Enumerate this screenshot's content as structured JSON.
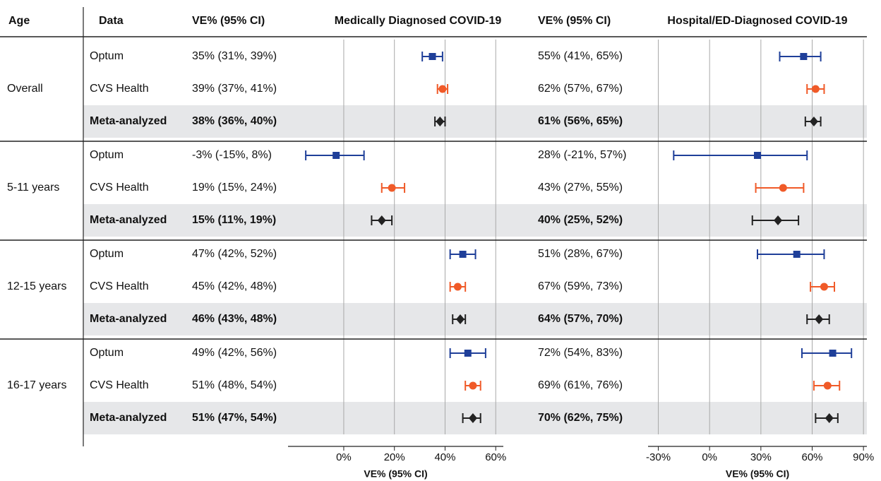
{
  "header": {
    "age": "Age",
    "data": "Data"
  },
  "age_groups": [
    "Overall",
    "5-11 years",
    "12-15 years",
    "16-17 years"
  ],
  "sources": [
    "Optum",
    "CVS Health",
    "Meta-analyzed"
  ],
  "chart_data": [
    {
      "type": "forest",
      "title": "Medically Diagnosed COVID-19",
      "value_header": "VE% (95% CI)",
      "x_label": "VE% (95% CI)",
      "xlim": [
        -22,
        63
      ],
      "xticks": [
        {
          "value": 0,
          "label": "0%"
        },
        {
          "value": 20,
          "label": "20%"
        },
        {
          "value": 40,
          "label": "40%"
        },
        {
          "value": 60,
          "label": "60%"
        }
      ],
      "grid": true,
      "series": [
        {
          "color": "#1f3f99",
          "marker": "square",
          "bold": false,
          "values": [
            35,
            -3,
            47,
            49
          ],
          "lower": [
            31,
            -15,
            42,
            42
          ],
          "upper": [
            39,
            8,
            52,
            56
          ],
          "value_labels": [
            "35% (31%, 39%)",
            "-3% (-15%, 8%)",
            "47% (42%, 52%)",
            "49% (42%, 56%)"
          ]
        },
        {
          "color": "#f05a28",
          "marker": "circle",
          "bold": false,
          "values": [
            39,
            19,
            45,
            51
          ],
          "lower": [
            37,
            15,
            42,
            48
          ],
          "upper": [
            41,
            24,
            48,
            54
          ],
          "value_labels": [
            "39% (37%, 41%)",
            "19% (15%, 24%)",
            "45% (42%, 48%)",
            "51% (48%, 54%)"
          ]
        },
        {
          "color": "#222222",
          "marker": "diamond",
          "bold": true,
          "values": [
            38,
            15,
            46,
            51
          ],
          "lower": [
            36,
            11,
            43,
            47
          ],
          "upper": [
            40,
            19,
            48,
            54
          ],
          "value_labels": [
            "38% (36%, 40%)",
            "15% (11%, 19%)",
            "46% (43%, 48%)",
            "51% (47%, 54%)"
          ]
        }
      ]
    },
    {
      "type": "forest",
      "title": "Hospital/ED-Diagnosed COVID-19",
      "value_header": "VE% (95% CI)",
      "x_label": "VE% (95% CI)",
      "xlim": [
        -36,
        92
      ],
      "xticks": [
        {
          "value": -30,
          "label": "-30%"
        },
        {
          "value": 0,
          "label": "0%"
        },
        {
          "value": 30,
          "label": "30%"
        },
        {
          "value": 60,
          "label": "60%"
        },
        {
          "value": 90,
          "label": "90%"
        }
      ],
      "grid": true,
      "series": [
        {
          "color": "#1f3f99",
          "marker": "square",
          "bold": false,
          "values": [
            55,
            28,
            51,
            72
          ],
          "lower": [
            41,
            -21,
            28,
            54
          ],
          "upper": [
            65,
            57,
            67,
            83
          ],
          "value_labels": [
            "55% (41%, 65%)",
            "28% (-21%, 57%)",
            "51% (28%, 67%)",
            "72% (54%, 83%)"
          ]
        },
        {
          "color": "#f05a28",
          "marker": "circle",
          "bold": false,
          "values": [
            62,
            43,
            67,
            69
          ],
          "lower": [
            57,
            27,
            59,
            61
          ],
          "upper": [
            67,
            55,
            73,
            76
          ],
          "value_labels": [
            "62% (57%, 67%)",
            "43% (27%, 55%)",
            "67% (59%, 73%)",
            "69% (61%, 76%)"
          ]
        },
        {
          "color": "#222222",
          "marker": "diamond",
          "bold": true,
          "values": [
            61,
            40,
            64,
            70
          ],
          "lower": [
            56,
            25,
            57,
            62
          ],
          "upper": [
            65,
            52,
            70,
            75
          ],
          "value_labels": [
            "61% (56%, 65%)",
            "40% (25%, 52%)",
            "64% (57%, 70%)",
            "70% (62%, 75%)"
          ]
        }
      ]
    }
  ]
}
